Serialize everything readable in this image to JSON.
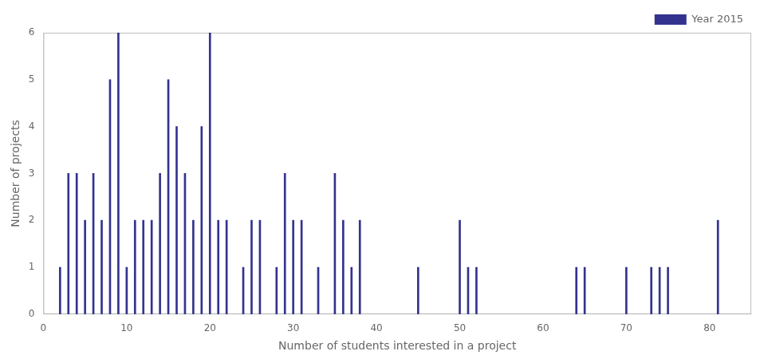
{
  "chart_data": {
    "type": "bar",
    "xlabel": "Number of students interested in a project",
    "ylabel": "Number of projects",
    "x": [
      2,
      3,
      4,
      5,
      6,
      7,
      8,
      9,
      10,
      11,
      12,
      13,
      14,
      15,
      16,
      17,
      18,
      19,
      20,
      21,
      22,
      24,
      25,
      26,
      28,
      29,
      30,
      31,
      33,
      35,
      36,
      37,
      38,
      45,
      50,
      51,
      52,
      64,
      65,
      70,
      73,
      74,
      75,
      81
    ],
    "series": [
      {
        "name": "Year 2015",
        "color": "#33338f",
        "values": [
          1,
          3,
          3,
          2,
          3,
          2,
          5,
          6,
          1,
          2,
          2,
          2,
          3,
          5,
          4,
          3,
          2,
          4,
          6,
          2,
          2,
          1,
          2,
          2,
          1,
          3,
          2,
          2,
          1,
          3,
          2,
          1,
          2,
          1,
          2,
          1,
          1,
          1,
          1,
          1,
          1,
          1,
          1,
          2
        ]
      }
    ],
    "xlim": [
      0,
      85
    ],
    "xticks": [
      0,
      10,
      20,
      30,
      40,
      50,
      60,
      70,
      80
    ],
    "ylim": [
      0,
      6
    ],
    "yticks": [
      0,
      1,
      2,
      3,
      4,
      5,
      6
    ],
    "legend": "upper right",
    "grid": false
  }
}
